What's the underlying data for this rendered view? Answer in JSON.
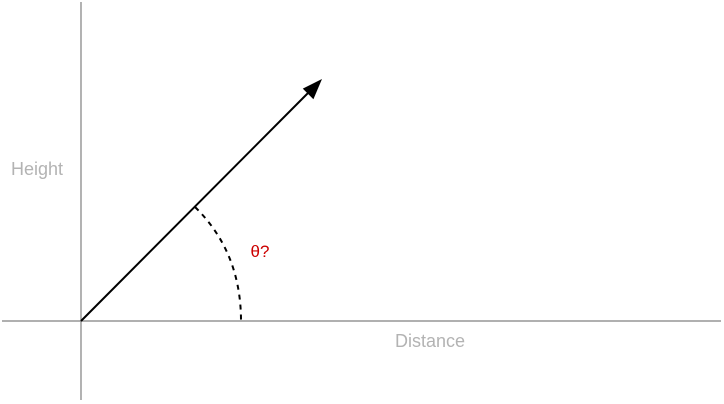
{
  "diagram": {
    "labels": {
      "height": "Height",
      "distance": "Distance",
      "angle": "θ?"
    },
    "colors": {
      "axis_line": "#808080",
      "axis_label": "#b3b3b3",
      "vector": "#000000",
      "angle_label": "#cc0000"
    }
  }
}
